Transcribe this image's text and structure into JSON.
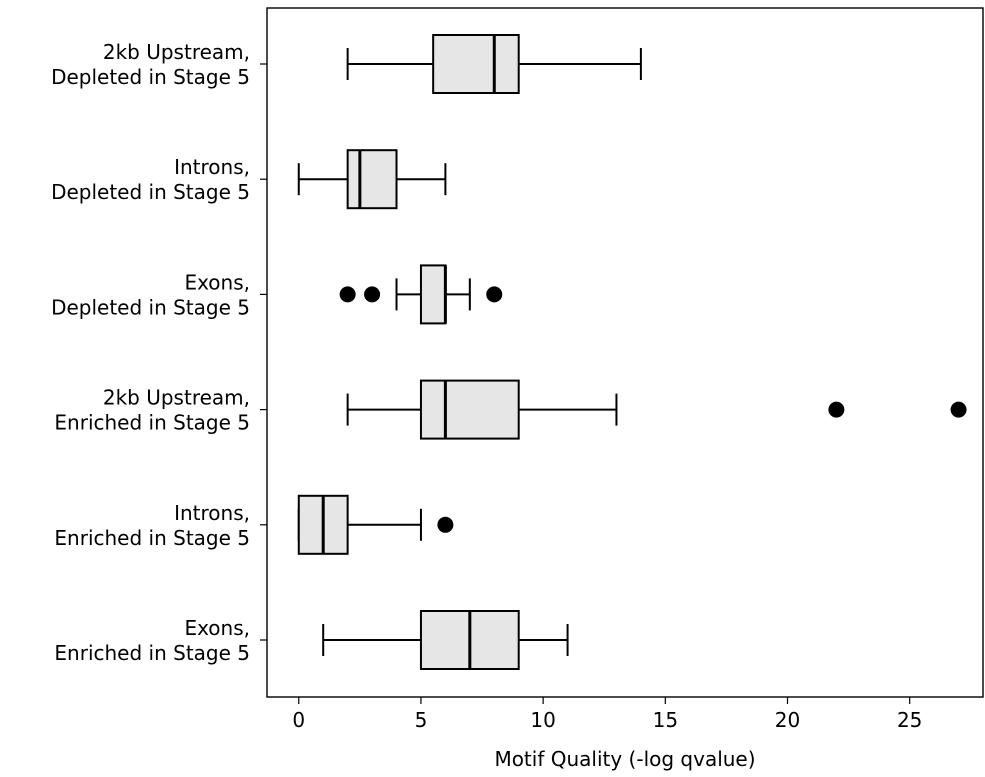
{
  "chart_data": {
    "type": "boxplot",
    "orientation": "horizontal",
    "title": "",
    "xlabel": "Motif Quality (-log qvalue)",
    "ylabel": "",
    "xlim": [
      -1.3,
      28.0
    ],
    "xticks": [
      0,
      5,
      10,
      15,
      20,
      25
    ],
    "grid": false,
    "box_color": "#e6e6e6",
    "categories": [
      {
        "label_line1": "2kb Upstream,",
        "label_line2": "Depleted in Stage 5",
        "whisker_low": 2,
        "q1": 5.5,
        "median": 8,
        "q3": 9,
        "whisker_high": 14,
        "outliers": []
      },
      {
        "label_line1": "Introns,",
        "label_line2": "Depleted in Stage 5",
        "whisker_low": 0,
        "q1": 2,
        "median": 2.5,
        "q3": 4,
        "whisker_high": 6,
        "outliers": []
      },
      {
        "label_line1": "Exons,",
        "label_line2": "Depleted in Stage 5",
        "whisker_low": 4,
        "q1": 5,
        "median": 6,
        "q3": 6,
        "whisker_high": 7,
        "outliers": [
          2,
          3,
          8
        ]
      },
      {
        "label_line1": "2kb Upstream,",
        "label_line2": "Enriched in Stage 5",
        "whisker_low": 2,
        "q1": 5,
        "median": 6,
        "q3": 9,
        "whisker_high": 13,
        "outliers": [
          22,
          27
        ]
      },
      {
        "label_line1": "Introns,",
        "label_line2": "Enriched in Stage 5",
        "whisker_low": 0,
        "q1": 0,
        "median": 1,
        "q3": 2,
        "whisker_high": 5,
        "outliers": [
          6
        ]
      },
      {
        "label_line1": "Exons,",
        "label_line2": "Enriched in Stage 5",
        "whisker_low": 1,
        "q1": 5,
        "median": 7,
        "q3": 9,
        "whisker_high": 11,
        "outliers": []
      }
    ]
  }
}
